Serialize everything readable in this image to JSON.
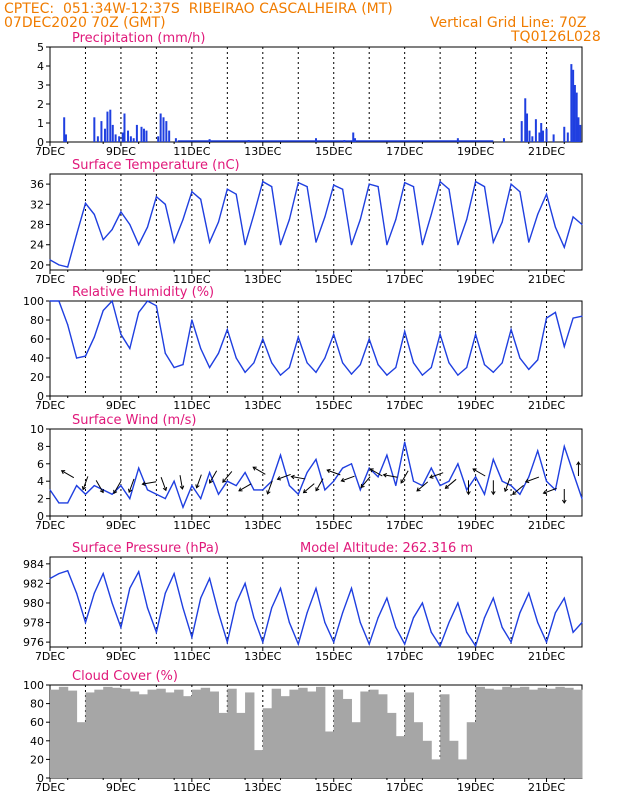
{
  "header": {
    "left_line1": "CPTEC:  051:34W-12:37S  RIBEIRAO CASCALHEIRA (MT)",
    "left_line2": "07DEC2020 70Z (GMT)",
    "right_line1": "Vertical Grid Line: 70Z",
    "right_line2": "TQ0126L028",
    "model_altitude": "Model Altitude: 262.316 m"
  },
  "colors": {
    "header": "#f07c00",
    "title": "#e0187a",
    "series": "#1f3fe0",
    "cloud": "#a6a6a6",
    "vline": "#000000"
  },
  "x_axis": {
    "range_days": [
      7,
      22
    ],
    "tick_labels": [
      "7DEC",
      "9DEC",
      "11DEC",
      "13DEC",
      "15DEC",
      "17DEC",
      "19DEC",
      "21DEC"
    ],
    "tick_days": [
      7,
      9,
      11,
      13,
      15,
      17,
      19,
      21
    ]
  },
  "chart_data": [
    {
      "type": "bar",
      "title": "Precipitation (mm/h)",
      "ylim": [
        0,
        5
      ],
      "yticks": [
        0,
        1,
        2,
        3,
        4,
        5
      ],
      "x_day": [
        7.4,
        7.45,
        8.25,
        8.35,
        8.45,
        8.55,
        8.62,
        8.7,
        8.77,
        8.85,
        8.95,
        9.05,
        9.1,
        9.2,
        9.28,
        9.36,
        9.45,
        9.58,
        9.65,
        9.72,
        10.05,
        10.12,
        10.2,
        10.28,
        10.36,
        10.55,
        11.5,
        12.6,
        14.5,
        15.3,
        15.55,
        15.6,
        18.5,
        19.8,
        20.3,
        20.4,
        20.45,
        20.52,
        20.6,
        20.7,
        20.8,
        20.85,
        20.9,
        21.0,
        21.2,
        21.5,
        21.6,
        21.7,
        21.75,
        21.8,
        21.85,
        21.9,
        21.95
      ],
      "values": [
        1.3,
        0.4,
        1.3,
        0.3,
        1.1,
        0.7,
        1.6,
        1.7,
        0.9,
        0.4,
        0.3,
        0.5,
        1.5,
        0.6,
        0.3,
        0.2,
        0.9,
        0.8,
        0.7,
        0.6,
        0.3,
        1.5,
        1.3,
        1.1,
        0.6,
        0.2,
        0.15,
        0.1,
        0.2,
        0.1,
        0.5,
        0.2,
        0.2,
        0.2,
        1.1,
        2.3,
        1.5,
        0.6,
        0.3,
        1.2,
        0.5,
        1.0,
        0.6,
        0.7,
        0.4,
        0.8,
        0.5,
        4.1,
        3.8,
        3.0,
        2.6,
        1.3,
        0.9
      ]
    },
    {
      "type": "line",
      "title": "Surface Temperature (nC)",
      "ylim": [
        19,
        38
      ],
      "yticks": [
        20,
        24,
        28,
        32,
        36
      ],
      "x_day": [
        7.0,
        7.25,
        7.5,
        7.75,
        8.0,
        8.25,
        8.5,
        8.75,
        9.0,
        9.25,
        9.5,
        9.75,
        10.0,
        10.25,
        10.5,
        10.75,
        11.0,
        11.25,
        11.5,
        11.75,
        12.0,
        12.25,
        12.5,
        12.75,
        13.0,
        13.25,
        13.5,
        13.75,
        14.0,
        14.25,
        14.5,
        14.75,
        15.0,
        15.25,
        15.5,
        15.75,
        16.0,
        16.25,
        16.5,
        16.75,
        17.0,
        17.25,
        17.5,
        17.75,
        18.0,
        18.25,
        18.5,
        18.75,
        19.0,
        19.25,
        19.5,
        19.75,
        20.0,
        20.25,
        20.5,
        20.75,
        21.0,
        21.25,
        21.5,
        21.75,
        22.0
      ],
      "values": [
        21.0,
        20.0,
        19.6,
        26.0,
        32.2,
        30.0,
        25.0,
        27.0,
        30.5,
        28.0,
        24.0,
        27.5,
        33.5,
        32.0,
        24.5,
        29.0,
        34.5,
        33.0,
        24.5,
        28.5,
        35.0,
        34.0,
        24.0,
        30.0,
        36.5,
        35.5,
        24.0,
        29.0,
        36.3,
        35.5,
        24.5,
        29.5,
        35.8,
        35.0,
        24.0,
        29.0,
        36.0,
        35.5,
        24.0,
        29.0,
        36.3,
        35.5,
        24.0,
        30.0,
        36.5,
        35.0,
        24.0,
        29.0,
        36.5,
        35.5,
        24.5,
        28.5,
        36.0,
        34.5,
        24.5,
        30.0,
        34.0,
        27.5,
        23.5,
        29.5,
        28.0
      ]
    },
    {
      "type": "line",
      "title": "Relative Humidity (%)",
      "ylim": [
        0,
        100
      ],
      "yticks": [
        0,
        20,
        40,
        60,
        80,
        100
      ],
      "x_day": [
        7.0,
        7.25,
        7.5,
        7.75,
        8.0,
        8.25,
        8.5,
        8.75,
        9.0,
        9.25,
        9.5,
        9.75,
        10.0,
        10.25,
        10.5,
        10.75,
        11.0,
        11.25,
        11.5,
        11.75,
        12.0,
        12.25,
        12.5,
        12.75,
        13.0,
        13.25,
        13.5,
        13.75,
        14.0,
        14.25,
        14.5,
        14.75,
        15.0,
        15.25,
        15.5,
        15.75,
        16.0,
        16.25,
        16.5,
        16.75,
        17.0,
        17.25,
        17.5,
        17.75,
        18.0,
        18.25,
        18.5,
        18.75,
        19.0,
        19.25,
        19.5,
        19.75,
        20.0,
        20.25,
        20.5,
        20.75,
        21.0,
        21.25,
        21.5,
        21.75,
        22.0
      ],
      "values": [
        100,
        100,
        75,
        40,
        42,
        62,
        90,
        100,
        65,
        50,
        88,
        100,
        95,
        45,
        30,
        33,
        80,
        50,
        30,
        45,
        70,
        40,
        25,
        35,
        60,
        35,
        22,
        30,
        62,
        35,
        25,
        40,
        65,
        35,
        23,
        33,
        60,
        33,
        22,
        30,
        68,
        35,
        22,
        30,
        65,
        35,
        22,
        30,
        65,
        33,
        25,
        35,
        70,
        40,
        28,
        38,
        82,
        88,
        52,
        82,
        84
      ]
    },
    {
      "type": "line",
      "title": "Surface Wind (m/s)",
      "ylim": [
        0,
        10
      ],
      "yticks": [
        0,
        2,
        4,
        6,
        8,
        10
      ],
      "x_day": [
        7.0,
        7.25,
        7.5,
        7.75,
        8.0,
        8.25,
        8.5,
        8.75,
        9.0,
        9.25,
        9.5,
        9.75,
        10.0,
        10.25,
        10.5,
        10.75,
        11.0,
        11.25,
        11.5,
        11.75,
        12.0,
        12.25,
        12.5,
        12.75,
        13.0,
        13.25,
        13.5,
        13.75,
        14.0,
        14.25,
        14.5,
        14.75,
        15.0,
        15.25,
        15.5,
        15.75,
        16.0,
        16.25,
        16.5,
        16.75,
        17.0,
        17.25,
        17.5,
        17.75,
        18.0,
        18.25,
        18.5,
        18.75,
        19.0,
        19.25,
        19.5,
        19.75,
        20.0,
        20.25,
        20.5,
        20.75,
        21.0,
        21.25,
        21.5,
        21.75,
        22.0
      ],
      "values": [
        3.0,
        1.5,
        1.5,
        3.5,
        2.5,
        3.5,
        3.0,
        2.5,
        3.5,
        2.0,
        5.5,
        3.0,
        2.5,
        2.0,
        4.0,
        1.0,
        3.5,
        2.0,
        5.0,
        2.5,
        4.0,
        3.5,
        5.0,
        3.0,
        3.0,
        4.0,
        7.0,
        3.5,
        2.5,
        5.0,
        6.5,
        3.0,
        4.0,
        5.5,
        6.0,
        3.0,
        5.5,
        4.5,
        7.0,
        3.5,
        8.5,
        4.0,
        3.5,
        5.5,
        3.5,
        4.0,
        6.0,
        3.0,
        4.5,
        2.5,
        6.5,
        4.0,
        3.5,
        2.5,
        4.5,
        7.5,
        4.0,
        3.0,
        8.0,
        5.0,
        2.0
      ],
      "arrows": [
        {
          "day": 7.5,
          "value": 4.8,
          "dir_deg": 300
        },
        {
          "day": 8.0,
          "value": 3.8,
          "dir_deg": 200
        },
        {
          "day": 8.4,
          "value": 3.4,
          "dir_deg": 150
        },
        {
          "day": 8.9,
          "value": 3.3,
          "dir_deg": 210
        },
        {
          "day": 9.3,
          "value": 3.5,
          "dir_deg": 200
        },
        {
          "day": 9.8,
          "value": 3.8,
          "dir_deg": 260
        },
        {
          "day": 10.2,
          "value": 3.7,
          "dir_deg": 160
        },
        {
          "day": 10.7,
          "value": 3.9,
          "dir_deg": 170
        },
        {
          "day": 11.2,
          "value": 4.0,
          "dir_deg": 200
        },
        {
          "day": 11.6,
          "value": 4.5,
          "dir_deg": 210
        },
        {
          "day": 12.0,
          "value": 4.5,
          "dir_deg": 220
        },
        {
          "day": 12.5,
          "value": 3.3,
          "dir_deg": 240
        },
        {
          "day": 12.9,
          "value": 5.2,
          "dir_deg": 300
        },
        {
          "day": 13.2,
          "value": 3.3,
          "dir_deg": 200
        },
        {
          "day": 13.6,
          "value": 4.5,
          "dir_deg": 250
        },
        {
          "day": 14.0,
          "value": 4.4,
          "dir_deg": 280
        },
        {
          "day": 14.3,
          "value": 3.2,
          "dir_deg": 230
        },
        {
          "day": 14.6,
          "value": 3.6,
          "dir_deg": 210
        },
        {
          "day": 15.0,
          "value": 5.0,
          "dir_deg": 290
        },
        {
          "day": 15.4,
          "value": 4.3,
          "dir_deg": 250
        },
        {
          "day": 15.9,
          "value": 3.9,
          "dir_deg": 220
        },
        {
          "day": 16.2,
          "value": 5.0,
          "dir_deg": 300
        },
        {
          "day": 16.6,
          "value": 4.6,
          "dir_deg": 280
        },
        {
          "day": 17.0,
          "value": 4.5,
          "dir_deg": 210
        },
        {
          "day": 17.5,
          "value": 3.4,
          "dir_deg": 230
        },
        {
          "day": 17.9,
          "value": 4.7,
          "dir_deg": 250
        },
        {
          "day": 18.3,
          "value": 3.7,
          "dir_deg": 230
        },
        {
          "day": 18.8,
          "value": 3.3,
          "dir_deg": 180
        },
        {
          "day": 19.1,
          "value": 5.0,
          "dir_deg": 300
        },
        {
          "day": 19.5,
          "value": 3.3,
          "dir_deg": 180
        },
        {
          "day": 19.9,
          "value": 3.6,
          "dir_deg": 200
        },
        {
          "day": 20.2,
          "value": 3.0,
          "dir_deg": 230
        },
        {
          "day": 20.6,
          "value": 4.2,
          "dir_deg": 250
        },
        {
          "day": 21.1,
          "value": 2.9,
          "dir_deg": 250
        },
        {
          "day": 21.5,
          "value": 2.3,
          "dir_deg": 180
        },
        {
          "day": 21.9,
          "value": 5.4,
          "dir_deg": 0
        }
      ]
    },
    {
      "type": "line",
      "title": "Surface Pressure (hPa)",
      "ylim": [
        975.5,
        984.7
      ],
      "yticks": [
        976,
        978,
        980,
        982,
        984
      ],
      "x_day": [
        7.0,
        7.25,
        7.5,
        7.75,
        8.0,
        8.25,
        8.5,
        8.75,
        9.0,
        9.25,
        9.5,
        9.75,
        10.0,
        10.25,
        10.5,
        10.75,
        11.0,
        11.25,
        11.5,
        11.75,
        12.0,
        12.25,
        12.5,
        12.75,
        13.0,
        13.25,
        13.5,
        13.75,
        14.0,
        14.25,
        14.5,
        14.75,
        15.0,
        15.25,
        15.5,
        15.75,
        16.0,
        16.25,
        16.5,
        16.75,
        17.0,
        17.25,
        17.5,
        17.75,
        18.0,
        18.25,
        18.5,
        18.75,
        19.0,
        19.25,
        19.5,
        19.75,
        20.0,
        20.25,
        20.5,
        20.75,
        21.0,
        21.25,
        21.5,
        21.75,
        22.0
      ],
      "values": [
        982.5,
        983.0,
        983.3,
        981.0,
        978.0,
        981.0,
        983.0,
        980.0,
        977.5,
        981.5,
        983.2,
        979.5,
        977.0,
        981.0,
        983.0,
        979.5,
        976.5,
        980.5,
        982.5,
        979.0,
        976.0,
        980.0,
        982.0,
        978.5,
        976.0,
        979.5,
        981.5,
        978.0,
        975.8,
        979.0,
        981.5,
        978.0,
        976.0,
        979.0,
        981.5,
        978.0,
        975.8,
        978.5,
        980.5,
        977.5,
        975.8,
        978.5,
        980.0,
        977.0,
        975.6,
        978.0,
        980.0,
        977.0,
        975.6,
        978.5,
        980.5,
        977.5,
        976.0,
        979.0,
        981.0,
        978.0,
        976.0,
        979.0,
        980.5,
        977.0,
        978.0
      ]
    },
    {
      "type": "bar",
      "title": "Cloud Cover (%)",
      "ylim": [
        0,
        100
      ],
      "yticks": [
        0,
        20,
        40,
        60,
        80,
        100
      ],
      "x_day": [
        7.0,
        7.25,
        7.5,
        7.75,
        8.0,
        8.25,
        8.5,
        8.75,
        9.0,
        9.25,
        9.5,
        9.75,
        10.0,
        10.25,
        10.5,
        10.75,
        11.0,
        11.25,
        11.5,
        11.75,
        12.0,
        12.25,
        12.5,
        12.75,
        13.0,
        13.25,
        13.5,
        13.75,
        14.0,
        14.25,
        14.5,
        14.75,
        15.0,
        15.25,
        15.5,
        15.75,
        16.0,
        16.25,
        16.5,
        16.75,
        17.0,
        17.25,
        17.5,
        17.75,
        18.0,
        18.25,
        18.5,
        18.75,
        19.0,
        19.25,
        19.5,
        19.75,
        20.0,
        20.25,
        20.5,
        20.75,
        21.0,
        21.25,
        21.5,
        21.75
      ],
      "values": [
        95,
        98,
        94,
        60,
        92,
        95,
        98,
        97,
        96,
        93,
        90,
        95,
        96,
        92,
        95,
        88,
        95,
        97,
        93,
        70,
        96,
        70,
        92,
        30,
        75,
        96,
        88,
        95,
        97,
        93,
        98,
        50,
        95,
        85,
        60,
        93,
        95,
        90,
        70,
        45,
        92,
        60,
        40,
        20,
        90,
        40,
        20,
        60,
        98,
        96,
        95,
        98,
        97,
        98,
        95,
        97,
        96,
        98,
        97,
        95
      ]
    }
  ],
  "title_paths": [
    "chart_data.0.title",
    "chart_data.1.title",
    "chart_data.2.title",
    "chart_data.3.title",
    "chart_data.4.title",
    "chart_data.5.title"
  ]
}
